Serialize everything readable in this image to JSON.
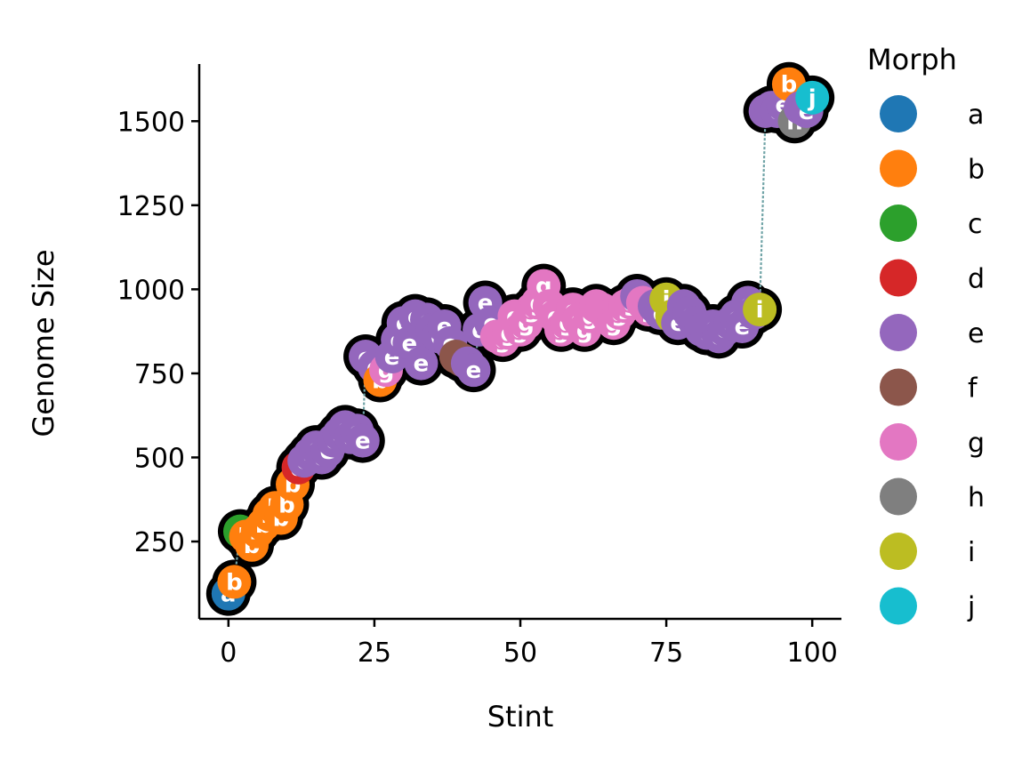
{
  "chart_data": {
    "type": "scatter",
    "xlabel": "Stint",
    "ylabel": "Genome Size",
    "xlim": [
      -5,
      105
    ],
    "ylim": [
      20,
      1670
    ],
    "xticks": [
      0,
      25,
      50,
      75,
      100
    ],
    "yticks": [
      250,
      500,
      750,
      1000,
      1250,
      1500
    ],
    "grid": false,
    "legend": {
      "title": "Morph",
      "placement": "right-outside",
      "entries": [
        {
          "label": "a",
          "color": "#1f77b4"
        },
        {
          "label": "b",
          "color": "#ff7f0e"
        },
        {
          "label": "c",
          "color": "#2ca02c"
        },
        {
          "label": "d",
          "color": "#d62728"
        },
        {
          "label": "e",
          "color": "#9467bd"
        },
        {
          "label": "f",
          "color": "#8c564b"
        },
        {
          "label": "g",
          "color": "#e377c2"
        },
        {
          "label": "h",
          "color": "#7f7f7f"
        },
        {
          "label": "i",
          "color": "#bcbd22"
        },
        {
          "label": "j",
          "color": "#17becf"
        }
      ]
    },
    "arrow_color": "#6fa3a6",
    "points": [
      {
        "x": 0,
        "y": 95,
        "morph": "a"
      },
      {
        "x": 1,
        "y": 130,
        "morph": "b"
      },
      {
        "x": 2,
        "y": 280,
        "morph": "c"
      },
      {
        "x": 3,
        "y": 265,
        "morph": "b"
      },
      {
        "x": 4,
        "y": 240,
        "morph": "b"
      },
      {
        "x": 5,
        "y": 280,
        "morph": "b"
      },
      {
        "x": 6,
        "y": 300,
        "morph": "b"
      },
      {
        "x": 7,
        "y": 330,
        "morph": "b"
      },
      {
        "x": 8,
        "y": 350,
        "morph": "b"
      },
      {
        "x": 9,
        "y": 320,
        "morph": "b"
      },
      {
        "x": 10,
        "y": 360,
        "morph": "b"
      },
      {
        "x": 11,
        "y": 420,
        "morph": "b"
      },
      {
        "x": 12,
        "y": 470,
        "morph": "d"
      },
      {
        "x": 13,
        "y": 490,
        "morph": "e"
      },
      {
        "x": 14,
        "y": 510,
        "morph": "e"
      },
      {
        "x": 15,
        "y": 530,
        "morph": "e"
      },
      {
        "x": 16,
        "y": 500,
        "morph": "e"
      },
      {
        "x": 17,
        "y": 520,
        "morph": "e"
      },
      {
        "x": 18,
        "y": 550,
        "morph": "e"
      },
      {
        "x": 19,
        "y": 570,
        "morph": "e"
      },
      {
        "x": 20,
        "y": 590,
        "morph": "e"
      },
      {
        "x": 21,
        "y": 560,
        "morph": "e"
      },
      {
        "x": 22,
        "y": 580,
        "morph": "e"
      },
      {
        "x": 23,
        "y": 550,
        "morph": "e"
      },
      {
        "x": 23.5,
        "y": 800,
        "morph": "e"
      },
      {
        "x": 25,
        "y": 770,
        "morph": "e"
      },
      {
        "x": 26,
        "y": 730,
        "morph": "b"
      },
      {
        "x": 27,
        "y": 760,
        "morph": "g"
      },
      {
        "x": 28,
        "y": 800,
        "morph": "e"
      },
      {
        "x": 29,
        "y": 850,
        "morph": "e"
      },
      {
        "x": 30,
        "y": 900,
        "morph": "e"
      },
      {
        "x": 31,
        "y": 840,
        "morph": "e"
      },
      {
        "x": 32,
        "y": 920,
        "morph": "e"
      },
      {
        "x": 33,
        "y": 780,
        "morph": "e"
      },
      {
        "x": 34,
        "y": 910,
        "morph": "e"
      },
      {
        "x": 35,
        "y": 880,
        "morph": "e"
      },
      {
        "x": 36,
        "y": 860,
        "morph": "e"
      },
      {
        "x": 37,
        "y": 890,
        "morph": "e"
      },
      {
        "x": 38,
        "y": 840,
        "morph": "e"
      },
      {
        "x": 39,
        "y": 800,
        "morph": "f"
      },
      {
        "x": 40,
        "y": 790,
        "morph": "f"
      },
      {
        "x": 41,
        "y": 780,
        "morph": "e"
      },
      {
        "x": 42,
        "y": 760,
        "morph": "e"
      },
      {
        "x": 43,
        "y": 880,
        "morph": "e"
      },
      {
        "x": 44,
        "y": 960,
        "morph": "e"
      },
      {
        "x": 45,
        "y": 900,
        "morph": "e"
      },
      {
        "x": 46,
        "y": 860,
        "morph": "g"
      },
      {
        "x": 47,
        "y": 850,
        "morph": "g"
      },
      {
        "x": 48,
        "y": 870,
        "morph": "g"
      },
      {
        "x": 49,
        "y": 920,
        "morph": "g"
      },
      {
        "x": 50,
        "y": 880,
        "morph": "g"
      },
      {
        "x": 51,
        "y": 900,
        "morph": "g"
      },
      {
        "x": 52,
        "y": 940,
        "morph": "g"
      },
      {
        "x": 53,
        "y": 960,
        "morph": "g"
      },
      {
        "x": 54,
        "y": 1010,
        "morph": "g"
      },
      {
        "x": 55,
        "y": 950,
        "morph": "g"
      },
      {
        "x": 56,
        "y": 920,
        "morph": "g"
      },
      {
        "x": 57,
        "y": 880,
        "morph": "g"
      },
      {
        "x": 58,
        "y": 900,
        "morph": "g"
      },
      {
        "x": 59,
        "y": 940,
        "morph": "g"
      },
      {
        "x": 60,
        "y": 910,
        "morph": "g"
      },
      {
        "x": 61,
        "y": 880,
        "morph": "g"
      },
      {
        "x": 62,
        "y": 920,
        "morph": "g"
      },
      {
        "x": 63,
        "y": 950,
        "morph": "g"
      },
      {
        "x": 64,
        "y": 940,
        "morph": "g"
      },
      {
        "x": 65,
        "y": 920,
        "morph": "g"
      },
      {
        "x": 66,
        "y": 900,
        "morph": "g"
      },
      {
        "x": 67,
        "y": 930,
        "morph": "g"
      },
      {
        "x": 68,
        "y": 950,
        "morph": "g"
      },
      {
        "x": 69,
        "y": 960,
        "morph": "g"
      },
      {
        "x": 70,
        "y": 980,
        "morph": "e"
      },
      {
        "x": 71,
        "y": 960,
        "morph": "g"
      },
      {
        "x": 72,
        "y": 940,
        "morph": "g"
      },
      {
        "x": 73,
        "y": 950,
        "morph": "e"
      },
      {
        "x": 74,
        "y": 930,
        "morph": "e"
      },
      {
        "x": 75,
        "y": 970,
        "morph": "i"
      },
      {
        "x": 76,
        "y": 920,
        "morph": "i"
      },
      {
        "x": 77,
        "y": 900,
        "morph": "e"
      },
      {
        "x": 78,
        "y": 950,
        "morph": "e"
      },
      {
        "x": 79,
        "y": 930,
        "morph": "e"
      },
      {
        "x": 80,
        "y": 900,
        "morph": "e"
      },
      {
        "x": 81,
        "y": 880,
        "morph": "e"
      },
      {
        "x": 82,
        "y": 870,
        "morph": "e"
      },
      {
        "x": 83,
        "y": 890,
        "morph": "e"
      },
      {
        "x": 84,
        "y": 860,
        "morph": "e"
      },
      {
        "x": 85,
        "y": 880,
        "morph": "e"
      },
      {
        "x": 86,
        "y": 900,
        "morph": "e"
      },
      {
        "x": 87,
        "y": 920,
        "morph": "e"
      },
      {
        "x": 88,
        "y": 890,
        "morph": "e"
      },
      {
        "x": 89,
        "y": 960,
        "morph": "e"
      },
      {
        "x": 90,
        "y": 930,
        "morph": "e"
      },
      {
        "x": 91,
        "y": 940,
        "morph": "i"
      },
      {
        "x": 92,
        "y": 1530,
        "morph": "e"
      },
      {
        "x": 93,
        "y": 1540,
        "morph": "e"
      },
      {
        "x": 94,
        "y": 1530,
        "morph": "e"
      },
      {
        "x": 95,
        "y": 1550,
        "morph": "e"
      },
      {
        "x": 96,
        "y": 1610,
        "morph": "b"
      },
      {
        "x": 97,
        "y": 1500,
        "morph": "h"
      },
      {
        "x": 98,
        "y": 1540,
        "morph": "e"
      },
      {
        "x": 99,
        "y": 1530,
        "morph": "e"
      },
      {
        "x": 100,
        "y": 1570,
        "morph": "j"
      }
    ]
  }
}
